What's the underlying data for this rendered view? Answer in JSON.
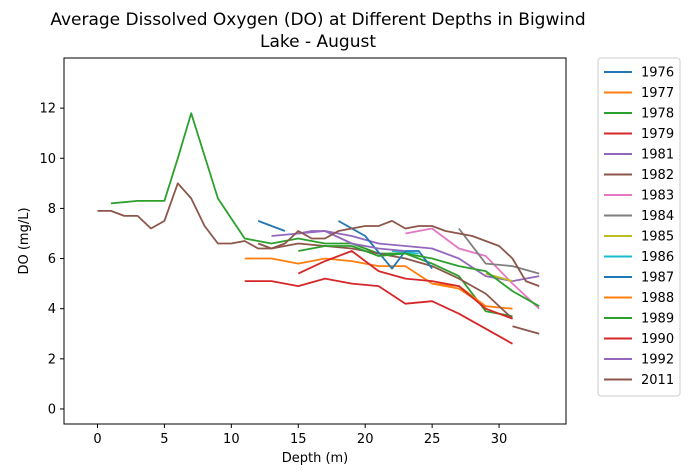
{
  "chart_data": {
    "type": "line",
    "title_lines": [
      "Average Dissolved Oxygen (DO) at Different Depths in Bigwind",
      "Lake - August"
    ],
    "xlabel": "Depth (m)",
    "ylabel": "DO (mg/L)",
    "xlim": [
      -2.5,
      35
    ],
    "ylim": [
      -0.6,
      14
    ],
    "xticks": [
      0,
      5,
      10,
      15,
      20,
      25,
      30
    ],
    "yticks": [
      0,
      2,
      4,
      6,
      8,
      10,
      12
    ],
    "grid": false,
    "legend_position": "outside-right",
    "series": [
      {
        "name": "1976",
        "color": "#1f77b4",
        "x": [
          12,
          14
        ],
        "y": [
          7.5,
          7.1
        ]
      },
      {
        "name": "1977",
        "color": "#ff7f0e",
        "x": [
          11,
          13,
          15,
          17,
          19,
          21,
          23,
          25,
          27,
          29,
          31
        ],
        "y": [
          6.0,
          6.0,
          5.8,
          6.0,
          5.9,
          5.7,
          5.7,
          5.0,
          4.8,
          4.1,
          4.0
        ]
      },
      {
        "name": "1978",
        "color": "#2ca02c",
        "x": [
          1,
          3,
          5,
          6,
          7,
          9,
          11,
          13,
          15,
          17,
          19,
          21,
          23,
          25,
          27,
          29,
          31
        ],
        "y": [
          8.2,
          8.3,
          8.3,
          10.0,
          11.8,
          8.4,
          6.8,
          6.6,
          6.8,
          6.6,
          6.6,
          6.2,
          6.2,
          5.8,
          5.3,
          3.9,
          3.7
        ]
      },
      {
        "name": "1979",
        "color": "#d62728",
        "x": [
          11,
          13,
          15,
          17,
          19,
          21,
          23,
          25,
          27,
          29,
          31
        ],
        "y": [
          5.1,
          5.1,
          4.9,
          5.2,
          5.0,
          4.9,
          4.2,
          4.3,
          3.8,
          3.2,
          2.6
        ]
      },
      {
        "name": "1981",
        "color": "#9467bd",
        "x": [
          13,
          15,
          17,
          19,
          21,
          23,
          25,
          27,
          29,
          31,
          33
        ],
        "y": [
          6.9,
          7.0,
          7.1,
          6.9,
          6.6,
          6.5,
          6.4,
          6.0,
          5.3,
          5.1,
          5.3
        ]
      },
      {
        "name": "1982",
        "color": "#8c564b",
        "x": [
          12,
          13,
          15,
          17,
          19,
          21,
          23,
          25,
          27,
          29,
          31
        ],
        "y": [
          6.6,
          6.4,
          6.6,
          6.5,
          6.4,
          6.2,
          6.0,
          5.7,
          5.2,
          4.6,
          3.6
        ]
      },
      {
        "name": "1983",
        "color": "#e377c2",
        "x": [
          23,
          25,
          27,
          29,
          31,
          33
        ],
        "y": [
          7.0,
          7.2,
          6.4,
          6.1,
          5.0,
          4.0
        ]
      },
      {
        "name": "1984",
        "color": "#7f7f7f",
        "x": [
          27,
          29,
          31,
          33
        ],
        "y": [
          7.2,
          5.8,
          5.7,
          5.4
        ]
      },
      {
        "name": "1985",
        "color": "#bcbd22",
        "x": [
          29,
          31
        ],
        "y": [
          5.4,
          5.1
        ]
      },
      {
        "name": "1986",
        "color": "#17becf",
        "x": [
          22,
          24
        ],
        "y": [
          6.3,
          6.2
        ]
      },
      {
        "name": "1987",
        "color": "#1f77b4",
        "x": [
          18,
          20,
          22,
          23,
          24,
          25
        ],
        "y": [
          7.5,
          6.9,
          5.6,
          6.3,
          6.3,
          5.6
        ]
      },
      {
        "name": "1988",
        "color": "#ff7f0e",
        "x": [
          25,
          27,
          29
        ],
        "y": [
          5.0,
          4.9,
          4.1
        ]
      },
      {
        "name": "1989",
        "color": "#2ca02c",
        "x": [
          15,
          17,
          19,
          21,
          23,
          25,
          27,
          29,
          31,
          33
        ],
        "y": [
          6.3,
          6.5,
          6.5,
          6.1,
          6.2,
          6.0,
          5.7,
          5.5,
          4.7,
          4.1
        ]
      },
      {
        "name": "1990",
        "color": "#d62728",
        "x": [
          15,
          17,
          19,
          21,
          23,
          25,
          27,
          29,
          31
        ],
        "y": [
          5.4,
          5.9,
          6.3,
          5.5,
          5.2,
          5.1,
          4.9,
          4.0,
          3.6
        ]
      },
      {
        "name": "1992",
        "color": "#9467bd",
        "x": [
          15,
          16,
          17,
          19,
          21,
          23
        ],
        "y": [
          7.0,
          7.1,
          7.1,
          6.6,
          6.4,
          6.3
        ]
      },
      {
        "name": "2011",
        "color": "#8c564b",
        "x": [
          0,
          1,
          2,
          3,
          4,
          5,
          6,
          7,
          8,
          9,
          10,
          11,
          12,
          13,
          14,
          15,
          16,
          17,
          18,
          19,
          20,
          21,
          22,
          23,
          24,
          25,
          26,
          27,
          28,
          29,
          30,
          31,
          32,
          33
        ],
        "y": [
          7.9,
          7.9,
          7.7,
          7.7,
          7.2,
          7.5,
          9.0,
          8.4,
          7.3,
          6.6,
          6.6,
          6.7,
          6.4,
          6.4,
          6.6,
          7.1,
          6.8,
          6.8,
          7.1,
          7.2,
          7.3,
          7.3,
          7.5,
          7.2,
          7.3,
          7.3,
          7.1,
          7.0,
          6.9,
          6.7,
          6.5,
          6.0,
          5.1,
          4.9
        ]
      }
    ],
    "extra_segment": {
      "series": "1982",
      "x": [
        31,
        33
      ],
      "y": [
        3.3,
        3.0
      ]
    }
  }
}
